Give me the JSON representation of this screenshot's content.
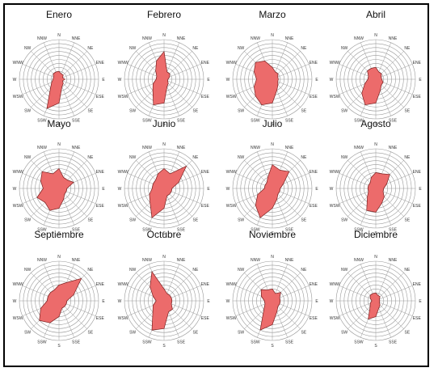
{
  "chart_data": {
    "type": "wind-rose",
    "directions": [
      "N",
      "NNE",
      "NE",
      "ENE",
      "E",
      "ESE",
      "SE",
      "SSE",
      "S",
      "SSW",
      "SW",
      "WSW",
      "W",
      "WNW",
      "NW",
      "NNW"
    ],
    "rmax": 10,
    "rings": 10,
    "grid": true,
    "colors": {
      "fill": "#ec6b6b",
      "stroke": "#7a1f1f",
      "grid": "#9a9a9a",
      "frame": "#000000"
    },
    "panels": [
      {
        "title": "Enero",
        "values": [
          2,
          1.5,
          1.5,
          1,
          1.5,
          1,
          1.5,
          2,
          6,
          8,
          3,
          2,
          1.5,
          1.5,
          2,
          2
        ]
      },
      {
        "title": "Febrero",
        "values": [
          7,
          2,
          2,
          1.5,
          1,
          1,
          1.5,
          2,
          6,
          7,
          4,
          3,
          2,
          2,
          3,
          5
        ]
      },
      {
        "title": "Marzo",
        "values": [
          3,
          2,
          2,
          1.5,
          1.5,
          1.5,
          2,
          3,
          6,
          7,
          6,
          5,
          4,
          5,
          6,
          5
        ]
      },
      {
        "title": "Abril",
        "values": [
          3,
          2,
          2,
          1.5,
          1.5,
          2,
          2,
          3,
          6,
          7,
          5,
          3,
          2,
          2,
          3,
          3
        ]
      },
      {
        "title": "Mayo",
        "values": [
          5,
          3,
          3,
          4,
          2,
          2,
          2,
          3,
          5,
          6,
          5,
          6,
          4,
          5,
          6,
          4
        ]
      },
      {
        "title": "Junio",
        "values": [
          5,
          4,
          8,
          4,
          2,
          2,
          2,
          2,
          5,
          8,
          5,
          4,
          3,
          3,
          3,
          4
        ]
      },
      {
        "title": "Julio",
        "values": [
          6,
          5,
          6,
          3,
          2,
          2,
          2,
          3,
          5,
          8,
          6,
          4,
          2,
          2,
          2,
          3
        ]
      },
      {
        "title": "Agosto",
        "values": [
          4,
          4,
          5,
          3,
          2,
          2,
          3,
          4,
          6,
          6,
          3,
          2,
          2,
          2,
          2,
          3
        ]
      },
      {
        "title": "Septiembre",
        "values": [
          4,
          5,
          8,
          4,
          2,
          2,
          2,
          2,
          4,
          6,
          7,
          5,
          3,
          3,
          3,
          3
        ]
      },
      {
        "title": "Octubre",
        "values": [
          3,
          2,
          2,
          2,
          2,
          2,
          3,
          3,
          7,
          8,
          4,
          3,
          2,
          3,
          5,
          8
        ]
      },
      {
        "title": "Noviembre",
        "values": [
          3,
          2,
          3,
          2,
          2,
          2,
          2,
          3,
          6,
          8,
          3,
          2,
          2,
          3,
          4,
          3
        ]
      },
      {
        "title": "Diciembre",
        "values": [
          2,
          1.5,
          1.5,
          1,
          1,
          1,
          1.5,
          2,
          4,
          5,
          2,
          1.5,
          1,
          1.5,
          2,
          2
        ]
      }
    ]
  }
}
